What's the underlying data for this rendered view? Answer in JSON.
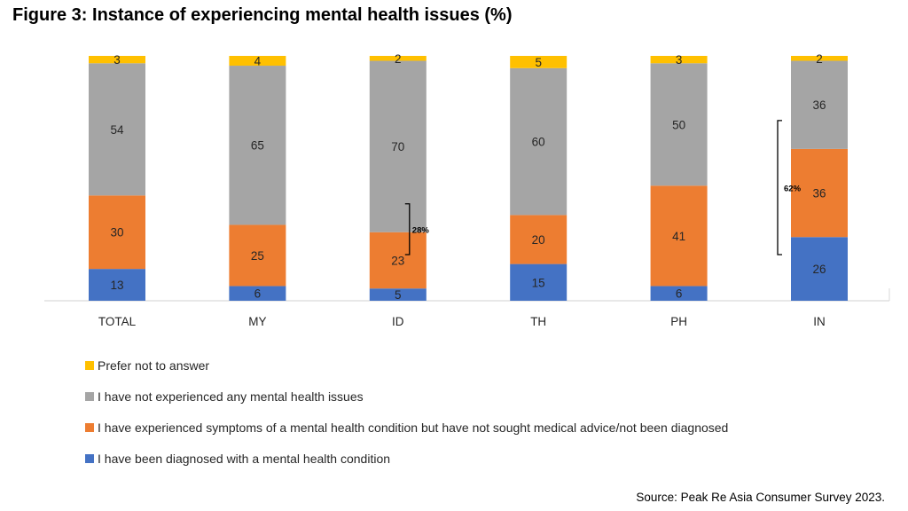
{
  "title": "Figure 3: Instance of experiencing mental health issues (%)",
  "source": "Source: Peak Re Asia Consumer Survey 2023.",
  "colors": {
    "prefer": "#FFC000",
    "not_experienced": "#A5A5A5",
    "symptoms": "#ED7D31",
    "diagnosed": "#4472C4"
  },
  "chart_data": {
    "type": "bar",
    "stacked": true,
    "categories": [
      "TOTAL",
      "MY",
      "ID",
      "TH",
      "PH",
      "IN"
    ],
    "series": [
      {
        "key": "diagnosed",
        "name": "I have been diagnosed with a mental health condition",
        "color": "#4472C4",
        "values": [
          13,
          6,
          5,
          15,
          6,
          26
        ]
      },
      {
        "key": "symptoms",
        "name": "I have experienced symptoms of a mental health condition but have not sought medical advice/not been diagnosed",
        "color": "#ED7D31",
        "values": [
          30,
          25,
          23,
          20,
          41,
          36
        ]
      },
      {
        "key": "not_experienced",
        "name": "I have not experienced any mental health issues",
        "color": "#A5A5A5",
        "values": [
          54,
          65,
          70,
          60,
          50,
          36
        ]
      },
      {
        "key": "prefer",
        "name": "Prefer not to answer",
        "color": "#FFC000",
        "values": [
          3,
          4,
          2,
          5,
          3,
          2
        ]
      }
    ],
    "legend_order": [
      "prefer",
      "not_experienced",
      "symptoms",
      "diagnosed"
    ],
    "annotations": [
      {
        "category": "ID",
        "text": "28%",
        "spans": [
          "diagnosed",
          "symptoms"
        ],
        "side": "right"
      },
      {
        "category": "IN",
        "text": "62%",
        "spans": [
          "diagnosed",
          "symptoms"
        ],
        "side": "left"
      }
    ],
    "ylim": [
      0,
      100
    ],
    "grid": false,
    "legend_position": "bottom"
  }
}
